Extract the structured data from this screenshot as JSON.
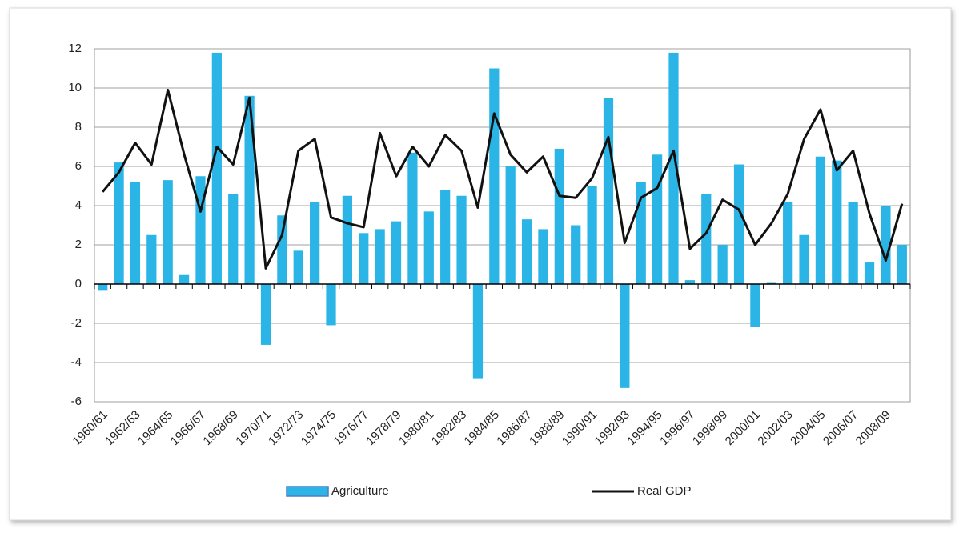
{
  "chart_data": {
    "type": "bar",
    "categories": [
      "1960/61",
      null,
      "1962/63",
      null,
      "1964/65",
      null,
      "1966/67",
      null,
      "1968/69",
      null,
      "1970/71",
      null,
      "1972/73",
      null,
      "1974/75",
      null,
      "1976/77",
      null,
      "1978/79",
      null,
      "1980/81",
      null,
      "1982/83",
      null,
      "1984/85",
      null,
      "1986/87",
      null,
      "1988/89",
      null,
      "1990/91",
      null,
      "1992/93",
      null,
      "1994/95",
      null,
      "1996/97",
      null,
      "1998/99",
      null,
      "2000/01",
      null,
      "2002/03",
      null,
      "2004/05",
      null,
      "2006/07",
      null,
      "2008/09",
      null
    ],
    "series": [
      {
        "name": "Agriculture",
        "type": "bar",
        "color": "#2bb5e6",
        "values": [
          -0.3,
          6.2,
          5.2,
          2.5,
          5.3,
          0.5,
          5.5,
          11.8,
          4.6,
          9.6,
          -3.1,
          3.5,
          1.7,
          4.2,
          -2.1,
          4.5,
          2.6,
          2.8,
          3.2,
          6.7,
          3.7,
          4.8,
          4.5,
          -4.8,
          11.0,
          6.0,
          3.3,
          2.8,
          6.9,
          3.0,
          5.0,
          9.5,
          -5.3,
          5.2,
          6.6,
          11.8,
          0.2,
          4.6,
          2.0,
          6.1,
          -2.2,
          0.1,
          4.2,
          2.5,
          6.5,
          6.3,
          4.2,
          1.1,
          4.0,
          2.0
        ]
      },
      {
        "name": "Real GDP",
        "type": "line",
        "color": "#111111",
        "values": [
          4.7,
          5.7,
          7.2,
          6.1,
          9.9,
          6.6,
          3.7,
          7.0,
          6.1,
          9.5,
          0.8,
          2.5,
          6.8,
          7.4,
          3.4,
          3.1,
          2.9,
          7.7,
          5.5,
          7.0,
          6.0,
          7.6,
          6.8,
          3.9,
          8.7,
          6.6,
          5.7,
          6.5,
          4.5,
          4.4,
          5.4,
          7.5,
          2.1,
          4.4,
          4.9,
          6.8,
          1.8,
          2.6,
          4.3,
          3.8,
          2.0,
          3.1,
          4.6,
          7.4,
          8.9,
          5.8,
          6.8,
          3.6,
          1.2,
          4.1
        ]
      }
    ],
    "ylim": [
      -6,
      12
    ],
    "yticks": [
      -6,
      -4,
      -2,
      0,
      2,
      4,
      6,
      8,
      10,
      12
    ],
    "grid": true,
    "legend": "bottom"
  }
}
